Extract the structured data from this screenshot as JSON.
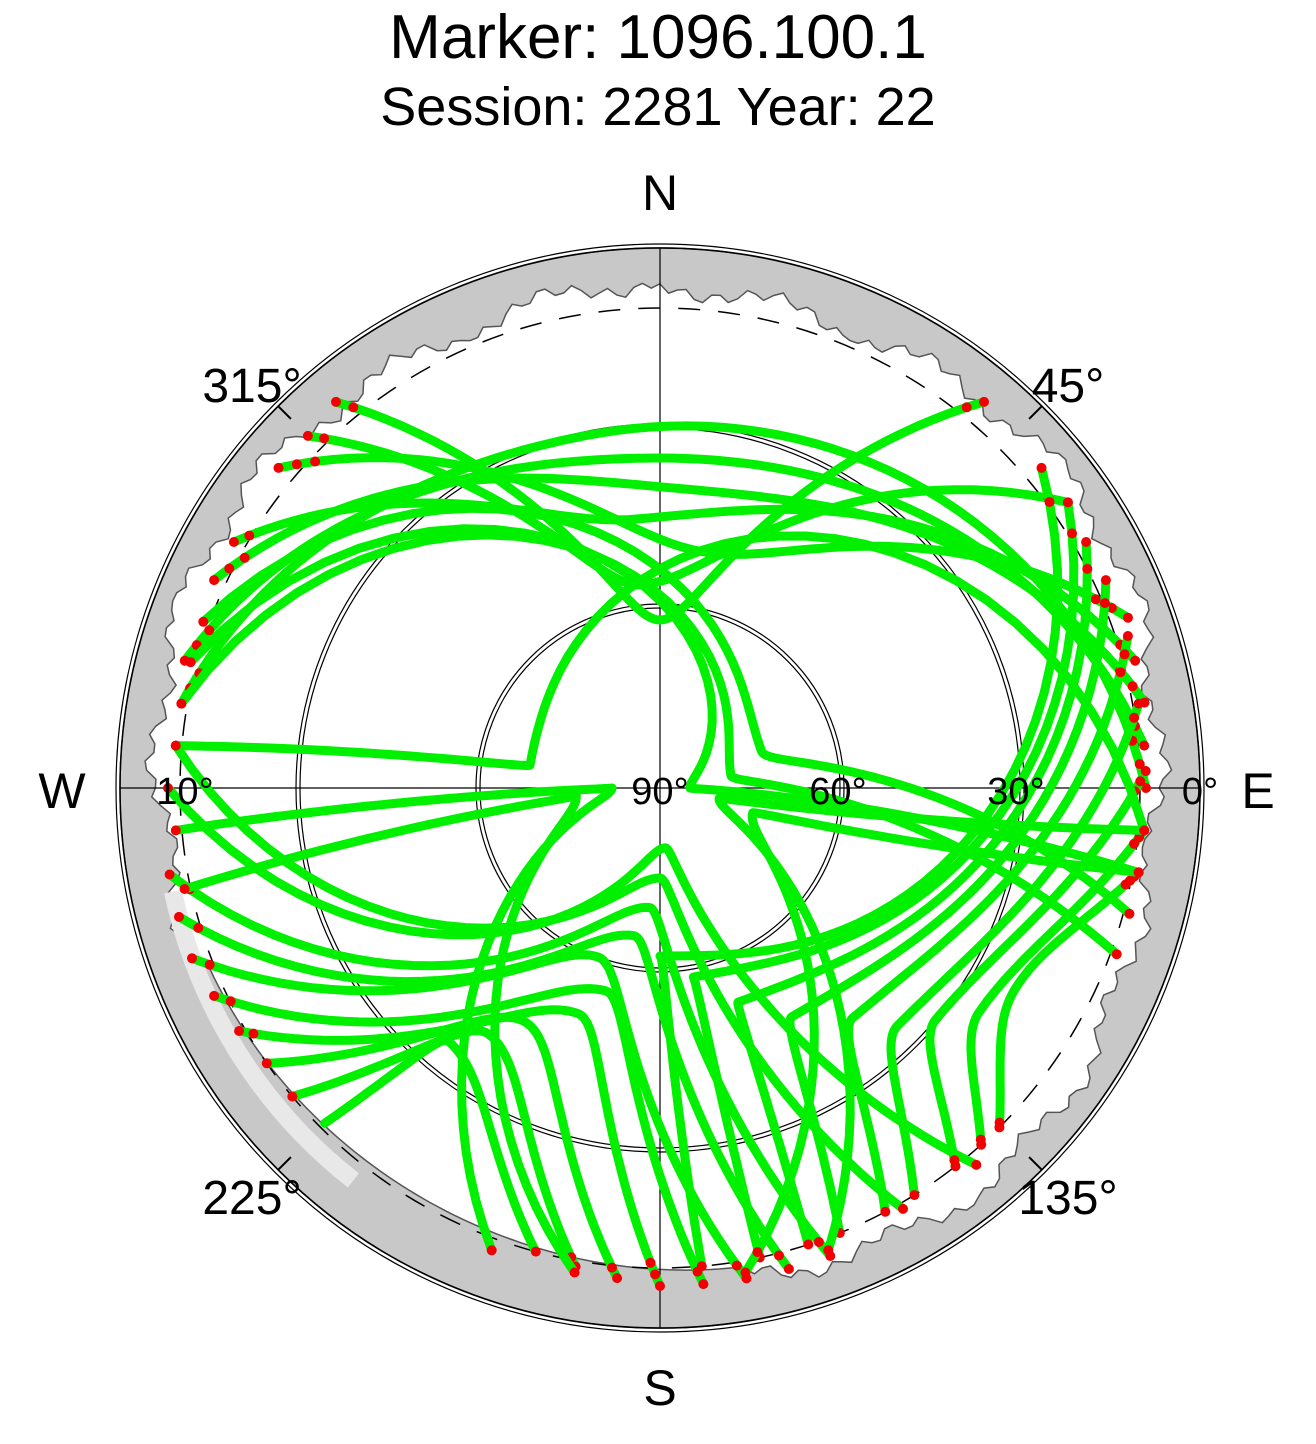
{
  "title": "Marker: 1096.100.1",
  "subtitle": "Session: 2281 Year: 22",
  "colors": {
    "ok": "#00f000",
    "flagged": "#f00000",
    "mask": "#c8c8c8",
    "mask_light": "#e8e8e8",
    "grid": "#000000"
  },
  "chart_data": {
    "type": "scatter",
    "projection": "polar-skyplot",
    "directions": {
      "north": "N",
      "east": "E",
      "south": "S",
      "west": "W"
    },
    "azimuth_labels": [
      {
        "az": 45,
        "label": "45°"
      },
      {
        "az": 135,
        "label": "135°"
      },
      {
        "az": 225,
        "label": "225°"
      },
      {
        "az": 315,
        "label": "315°"
      }
    ],
    "elevation_labels": [
      {
        "el": 0,
        "label": "0°"
      },
      {
        "el": 10,
        "label": "10°"
      },
      {
        "el": 30,
        "label": "30°"
      },
      {
        "el": 60,
        "label": "60°"
      },
      {
        "el": 90,
        "label": "90°"
      }
    ],
    "elevation_circles": [
      30,
      60
    ],
    "cutoff_elevation_dashed": 10,
    "horizon_mask_elevation_range": [
      3,
      9
    ],
    "series": [
      {
        "color": "ok"
      },
      {
        "color": "flagged"
      }
    ],
    "tracks": [
      {
        "start": [
          320,
          6
        ],
        "max_el": 62,
        "az_max": 0,
        "end": [
          40,
          6
        ]
      },
      {
        "start": [
          315,
          7
        ],
        "max_el": 56,
        "az_max": 355,
        "end": [
          55,
          7
        ]
      },
      {
        "start": [
          310,
          7
        ],
        "max_el": 50,
        "az_max": 10,
        "end": [
          70,
          7
        ]
      },
      {
        "start": [
          300,
          8
        ],
        "max_el": 45,
        "az_max": 355,
        "end": [
          75,
          8
        ]
      },
      {
        "start": [
          295,
          8
        ],
        "max_el": 40,
        "az_max": 5,
        "end": [
          80,
          8
        ]
      },
      {
        "start": [
          285,
          8
        ],
        "max_el": 35,
        "az_max": 0,
        "end": [
          85,
          9
        ]
      },
      {
        "start": [
          280,
          9
        ],
        "max_el": 30,
        "az_max": 350,
        "end": [
          90,
          9
        ]
      },
      {
        "start": [
          275,
          9
        ],
        "max_el": 75,
        "az_max": 180,
        "end": [
          150,
          9
        ]
      },
      {
        "start": [
          270,
          8
        ],
        "max_el": 80,
        "az_max": 175,
        "end": [
          140,
          8
        ]
      },
      {
        "start": [
          260,
          7
        ],
        "max_el": 70,
        "az_max": 185,
        "end": [
          160,
          7
        ]
      },
      {
        "start": [
          255,
          7
        ],
        "max_el": 65,
        "az_max": 190,
        "end": [
          165,
          7
        ]
      },
      {
        "start": [
          250,
          7
        ],
        "max_el": 60,
        "az_max": 200,
        "end": [
          170,
          7
        ]
      },
      {
        "start": [
          245,
          8
        ],
        "max_el": 55,
        "az_max": 195,
        "end": [
          175,
          7
        ]
      },
      {
        "start": [
          240,
          9
        ],
        "max_el": 50,
        "az_max": 200,
        "end": [
          180,
          7
        ]
      },
      {
        "start": [
          235,
          10
        ],
        "max_el": 45,
        "az_max": 210,
        "end": [
          185,
          8
        ]
      },
      {
        "start": [
          230,
          10
        ],
        "max_el": 40,
        "az_max": 215,
        "end": [
          190,
          9
        ]
      },
      {
        "start": [
          225,
          11
        ],
        "max_el": 35,
        "az_max": 220,
        "end": [
          195,
          10
        ]
      },
      {
        "start": [
          50,
          7
        ],
        "max_el": 62,
        "az_max": 180,
        "end": [
          175,
          10
        ]
      },
      {
        "start": [
          55,
          7
        ],
        "max_el": 58,
        "az_max": 170,
        "end": [
          168,
          10
        ]
      },
      {
        "start": [
          60,
          8
        ],
        "max_el": 52,
        "az_max": 160,
        "end": [
          162,
          10
        ]
      },
      {
        "start": [
          65,
          8
        ],
        "max_el": 46,
        "az_max": 150,
        "end": [
          158,
          10
        ]
      },
      {
        "start": [
          72,
          8
        ],
        "max_el": 40,
        "az_max": 140,
        "end": [
          152,
          10
        ]
      },
      {
        "start": [
          80,
          9
        ],
        "max_el": 34,
        "az_max": 135,
        "end": [
          148,
          10
        ]
      },
      {
        "start": [
          88,
          9
        ],
        "max_el": 30,
        "az_max": 130,
        "end": [
          142,
          10
        ]
      },
      {
        "start": [
          95,
          9
        ],
        "max_el": 25,
        "az_max": 125,
        "end": [
          138,
          10
        ]
      },
      {
        "start": [
          100,
          9
        ],
        "max_el": 22,
        "az_max": 120,
        "end": [
          135,
          10
        ]
      },
      {
        "start": [
          285,
          9
        ],
        "max_el": 85,
        "az_max": 90,
        "end": [
          100,
          9
        ]
      },
      {
        "start": [
          280,
          9
        ],
        "max_el": 78,
        "az_max": 80,
        "end": [
          110,
          9
        ]
      },
      {
        "start": [
          290,
          9
        ],
        "max_el": 72,
        "az_max": 70,
        "end": [
          105,
          9
        ]
      },
      {
        "start": [
          275,
          9
        ],
        "max_el": 68,
        "az_max": 280,
        "end": [
          95,
          9
        ]
      },
      {
        "start": [
          265,
          9
        ],
        "max_el": 82,
        "az_max": 270,
        "end": [
          200,
          8
        ]
      },
      {
        "start": [
          258,
          9
        ],
        "max_el": 76,
        "az_max": 265,
        "end": [
          190,
          8
        ]
      },
      {
        "start": [
          95,
          9
        ],
        "max_el": 80,
        "az_max": 100,
        "end": [
          160,
          8
        ]
      },
      {
        "start": [
          100,
          9
        ],
        "max_el": 74,
        "az_max": 105,
        "end": [
          170,
          8
        ]
      }
    ]
  }
}
